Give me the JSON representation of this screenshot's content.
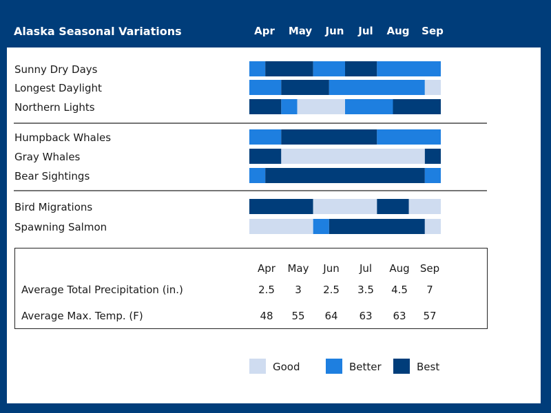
{
  "colors": {
    "frame": "#003d7a",
    "good": "#cfdcf0",
    "better": "#1e7fe0",
    "best": "#003d7a"
  },
  "header": {
    "title": "Alaska Seasonal Variations",
    "months": [
      "Apr",
      "May",
      "Jun",
      "Jul",
      "Aug",
      "Sep"
    ]
  },
  "chart_data": {
    "type": "bar",
    "title": "Alaska Seasonal Variations",
    "months": [
      "Apr",
      "May",
      "Jun",
      "Jul",
      "Aug",
      "Sep"
    ],
    "rating_scale": [
      "Good",
      "Better",
      "Best"
    ],
    "groups": [
      {
        "rows": [
          {
            "label": "Sunny Dry Days",
            "segments": [
              {
                "start": "early Apr",
                "end": "mid Apr",
                "rating": "Better"
              },
              {
                "start": "mid Apr",
                "end": "early Jun",
                "rating": "Best"
              },
              {
                "start": "early Jun",
                "end": "late Jun",
                "rating": "Better"
              },
              {
                "start": "late Jun",
                "end": "early Aug",
                "rating": "Best"
              },
              {
                "start": "early Aug",
                "end": "late Sep",
                "rating": "Better"
              }
            ]
          },
          {
            "label": "Longest Daylight",
            "segments": [
              {
                "start": "early Apr",
                "end": "early May",
                "rating": "Better"
              },
              {
                "start": "early May",
                "end": "mid Jun",
                "rating": "Best"
              },
              {
                "start": "mid Jun",
                "end": "mid Sep",
                "rating": "Better"
              },
              {
                "start": "mid Sep",
                "end": "late Sep",
                "rating": "Good"
              }
            ]
          },
          {
            "label": "Northern Lights",
            "segments": [
              {
                "start": "early Apr",
                "end": "late Apr",
                "rating": "Best"
              },
              {
                "start": "late Apr",
                "end": "mid May",
                "rating": "Better"
              },
              {
                "start": "mid May",
                "end": "early Jul",
                "rating": "Good"
              },
              {
                "start": "early Jul",
                "end": "mid Aug",
                "rating": "Better"
              },
              {
                "start": "mid Aug",
                "end": "late Sep",
                "rating": "Best"
              }
            ]
          }
        ]
      },
      {
        "rows": [
          {
            "label": "Humpback Whales",
            "segments": [
              {
                "start": "early Apr",
                "end": "early May",
                "rating": "Better"
              },
              {
                "start": "early May",
                "end": "early Aug",
                "rating": "Best"
              },
              {
                "start": "early Aug",
                "end": "late Sep",
                "rating": "Better"
              }
            ]
          },
          {
            "label": "Gray Whales",
            "segments": [
              {
                "start": "early Apr",
                "end": "early May",
                "rating": "Best"
              },
              {
                "start": "early May",
                "end": "mid Sep",
                "rating": "Good"
              },
              {
                "start": "mid Sep",
                "end": "late Sep",
                "rating": "Best"
              }
            ]
          },
          {
            "label": "Bear Sightings",
            "segments": [
              {
                "start": "early Apr",
                "end": "mid Apr",
                "rating": "Better"
              },
              {
                "start": "mid Apr",
                "end": "mid Sep",
                "rating": "Best"
              },
              {
                "start": "mid Sep",
                "end": "late Sep",
                "rating": "Better"
              }
            ]
          }
        ]
      },
      {
        "rows": [
          {
            "label": "Bird Migrations",
            "segments": [
              {
                "start": "early Apr",
                "end": "early Jun",
                "rating": "Best"
              },
              {
                "start": "early Jun",
                "end": "early Aug",
                "rating": "Good"
              },
              {
                "start": "early Aug",
                "end": "early Sep",
                "rating": "Best"
              },
              {
                "start": "early Sep",
                "end": "late Sep",
                "rating": "Good"
              }
            ]
          },
          {
            "label": "Spawning Salmon",
            "segments": [
              {
                "start": "early Apr",
                "end": "early Jun",
                "rating": "Good"
              },
              {
                "start": "early Jun",
                "end": "mid Jun",
                "rating": "Better"
              },
              {
                "start": "mid Jun",
                "end": "mid Sep",
                "rating": "Best"
              },
              {
                "start": "mid Sep",
                "end": "late Sep",
                "rating": "Good"
              }
            ]
          }
        ]
      }
    ],
    "table": {
      "columns": [
        "Apr",
        "May",
        "Jun",
        "Jul",
        "Aug",
        "Sep"
      ],
      "rows": [
        {
          "label": "Average Total Precipitation (in.)",
          "values": [
            "2.5",
            "3",
            "2.5",
            "3.5",
            "4.5",
            "7"
          ]
        },
        {
          "label": "Average Max. Temp. (F)",
          "values": [
            "48",
            "55",
            "64",
            "63",
            "63",
            "57"
          ]
        }
      ]
    },
    "legend": [
      {
        "label": "Good",
        "rating": "Good"
      },
      {
        "label": "Better",
        "rating": "Better"
      },
      {
        "label": "Best",
        "rating": "Best"
      }
    ]
  }
}
